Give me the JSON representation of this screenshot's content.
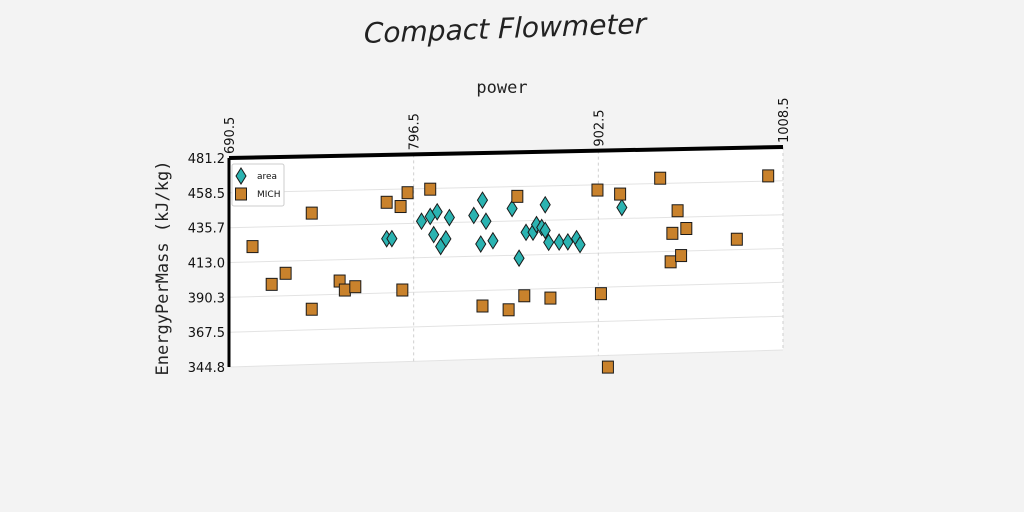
{
  "chart_data": {
    "type": "scatter",
    "title": "Compact Flowmeter",
    "xlabel": "power",
    "ylabel": "EnergyPerMass (kJ/kg)",
    "xlim": [
      690.5,
      1008.5
    ],
    "ylim": [
      344.8,
      481.2
    ],
    "x_ticks": [
      "690.5",
      "796.5",
      "902.5",
      "1008.5"
    ],
    "y_ticks": [
      "481.2",
      "458.5",
      "435.7",
      "413.0",
      "390.3",
      "367.5",
      "344.8"
    ],
    "grid": true,
    "legend_position": "top-left",
    "series": [
      {
        "name": "area",
        "marker": "diamond",
        "color": "#2bb3b1",
        "points": [
          [
            781,
            426
          ],
          [
            784,
            426
          ],
          [
            801,
            437
          ],
          [
            806,
            440
          ],
          [
            808,
            428
          ],
          [
            810,
            443
          ],
          [
            812,
            420
          ],
          [
            815,
            425
          ],
          [
            817,
            439
          ],
          [
            831,
            440
          ],
          [
            835,
            421
          ],
          [
            836,
            450
          ],
          [
            838,
            436
          ],
          [
            842,
            423
          ],
          [
            853,
            444
          ],
          [
            857,
            411
          ],
          [
            861,
            428
          ],
          [
            865,
            428
          ],
          [
            867,
            433
          ],
          [
            870,
            431
          ],
          [
            872,
            446
          ],
          [
            872,
            429
          ],
          [
            874,
            421
          ],
          [
            880,
            421
          ],
          [
            885,
            421
          ],
          [
            890,
            423
          ],
          [
            892,
            419
          ],
          [
            916,
            443
          ]
        ]
      },
      {
        "name": "MICH",
        "marker": "square",
        "color": "#c9822c",
        "points": [
          [
            704,
            423
          ],
          [
            715,
            398
          ],
          [
            723,
            405
          ],
          [
            738,
            444
          ],
          [
            738,
            381
          ],
          [
            754,
            399
          ],
          [
            757,
            393
          ],
          [
            763,
            395
          ],
          [
            781,
            450
          ],
          [
            789,
            447
          ],
          [
            790,
            392
          ],
          [
            793,
            456
          ],
          [
            806,
            458
          ],
          [
            836,
            380
          ],
          [
            851,
            377
          ],
          [
            856,
            452
          ],
          [
            860,
            386
          ],
          [
            875,
            384
          ],
          [
            902,
            455
          ],
          [
            904,
            386
          ],
          [
            908,
            337
          ],
          [
            915,
            452
          ],
          [
            938,
            462
          ],
          [
            944,
            406
          ],
          [
            945,
            425
          ],
          [
            948,
            440
          ],
          [
            950,
            410
          ],
          [
            953,
            428
          ],
          [
            982,
            420
          ],
          [
            1000,
            462
          ]
        ]
      }
    ]
  }
}
